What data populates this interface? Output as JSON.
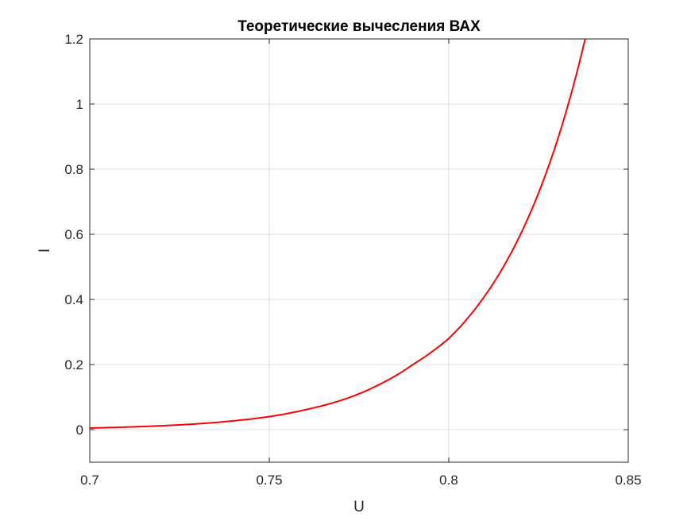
{
  "chart_data": {
    "type": "line",
    "title": "Теоретические вычесления ВАХ",
    "xlabel": "U",
    "ylabel": "I",
    "xlim": [
      0.7,
      0.85
    ],
    "ylim": [
      -0.1,
      1.2
    ],
    "xticks": [
      0.7,
      0.75,
      0.8,
      0.85
    ],
    "xtick_labels": [
      "0.7",
      "0.75",
      "0.8",
      "0.85"
    ],
    "yticks": [
      0,
      0.2,
      0.4,
      0.6,
      0.8,
      1,
      1.2
    ],
    "ytick_labels": [
      "0",
      "0.2",
      "0.4",
      "0.6",
      "0.8",
      "1",
      "1.2"
    ],
    "grid": true,
    "series": [
      {
        "color": "#ff0000",
        "x": [
          0.7,
          0.71,
          0.72,
          0.73,
          0.74,
          0.75,
          0.76,
          0.77,
          0.78,
          0.79,
          0.8,
          0.81,
          0.82,
          0.83,
          0.838
        ],
        "y": [
          0.005,
          0.008,
          0.012,
          0.018,
          0.027,
          0.04,
          0.061,
          0.09,
          0.135,
          0.2,
          0.28,
          0.41,
          0.6,
          0.88,
          1.2
        ]
      }
    ]
  }
}
